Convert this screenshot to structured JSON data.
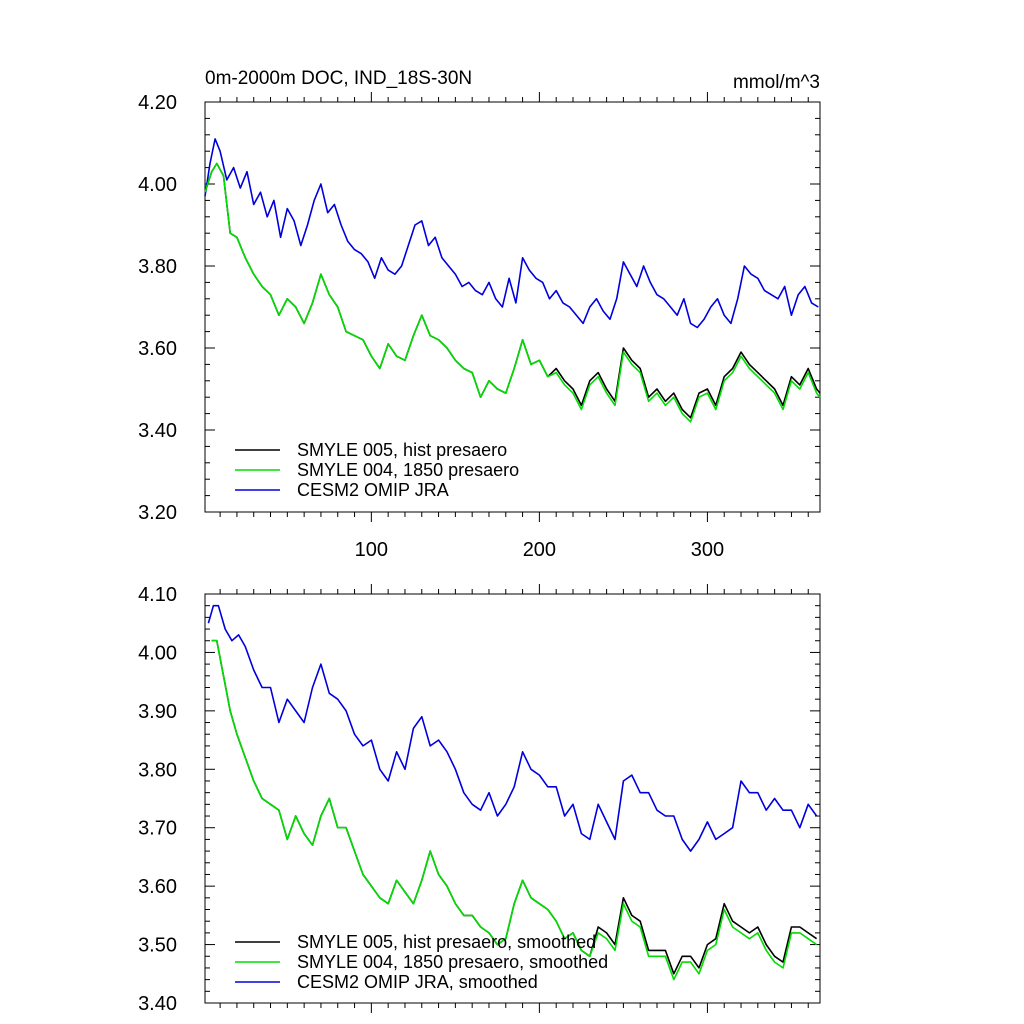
{
  "figure": {
    "title": "0m-2000m DOC, IND_18S-30N",
    "units": "mmol/m^3"
  },
  "chart_data": [
    {
      "type": "line",
      "title": "0m-2000m DOC, IND_18S-30N",
      "units_label": "mmol/m^3",
      "xlabel": "",
      "ylabel": "",
      "xlim": [
        1,
        367
      ],
      "ylim": [
        3.2,
        4.2
      ],
      "xticks": [
        100,
        200,
        300
      ],
      "xtick_labels": [
        "100",
        "200",
        "300"
      ],
      "yticks": [
        3.2,
        3.4,
        3.6,
        3.8,
        4.0,
        4.2
      ],
      "ytick_labels": [
        "3.20",
        "3.40",
        "3.60",
        "3.80",
        "4.00",
        "4.20"
      ],
      "grid": false,
      "legend_position": "bottom-left",
      "series": [
        {
          "name": "SMYLE 005, hist presaero",
          "color": "#000000",
          "x": [
            1,
            5,
            8,
            12,
            16,
            20,
            25,
            30,
            35,
            40,
            45,
            50,
            55,
            60,
            65,
            70,
            75,
            80,
            85,
            90,
            95,
            100,
            105,
            110,
            115,
            120,
            125,
            130,
            135,
            140,
            145,
            150,
            155,
            160,
            165,
            170,
            175,
            180,
            185,
            190,
            195,
            200,
            205,
            210,
            215,
            220,
            225,
            230,
            235,
            240,
            245,
            250,
            255,
            260,
            265,
            270,
            275,
            280,
            285,
            290,
            295,
            300,
            305,
            310,
            315,
            320,
            325,
            330,
            335,
            340,
            345,
            350,
            355,
            360,
            365,
            367
          ],
          "values": [
            3.98,
            4.03,
            4.05,
            4.02,
            3.88,
            3.87,
            3.82,
            3.78,
            3.75,
            3.73,
            3.68,
            3.72,
            3.7,
            3.66,
            3.71,
            3.78,
            3.73,
            3.7,
            3.64,
            3.63,
            3.62,
            3.58,
            3.55,
            3.61,
            3.58,
            3.57,
            3.63,
            3.68,
            3.63,
            3.62,
            3.6,
            3.57,
            3.55,
            3.54,
            3.48,
            3.52,
            3.5,
            3.49,
            3.55,
            3.62,
            3.56,
            3.57,
            3.53,
            3.55,
            3.52,
            3.5,
            3.46,
            3.52,
            3.54,
            3.5,
            3.47,
            3.6,
            3.57,
            3.55,
            3.48,
            3.5,
            3.47,
            3.49,
            3.45,
            3.43,
            3.49,
            3.5,
            3.46,
            3.53,
            3.55,
            3.59,
            3.56,
            3.54,
            3.52,
            3.5,
            3.46,
            3.53,
            3.51,
            3.55,
            3.5,
            3.49
          ]
        },
        {
          "name": "SMYLE 004, 1850 presaero",
          "color": "#00dd00",
          "x": [
            1,
            5,
            8,
            12,
            16,
            20,
            25,
            30,
            35,
            40,
            45,
            50,
            55,
            60,
            65,
            70,
            75,
            80,
            85,
            90,
            95,
            100,
            105,
            110,
            115,
            120,
            125,
            130,
            135,
            140,
            145,
            150,
            155,
            160,
            165,
            170,
            175,
            180,
            185,
            190,
            195,
            200,
            205,
            210,
            215,
            220,
            225,
            230,
            235,
            240,
            245,
            250,
            255,
            260,
            265,
            270,
            275,
            280,
            285,
            290,
            295,
            300,
            305,
            310,
            315,
            320,
            325,
            330,
            335,
            340,
            345,
            350,
            355,
            360,
            365,
            367
          ],
          "values": [
            3.98,
            4.03,
            4.05,
            4.02,
            3.88,
            3.87,
            3.82,
            3.78,
            3.75,
            3.73,
            3.68,
            3.72,
            3.7,
            3.66,
            3.71,
            3.78,
            3.73,
            3.7,
            3.64,
            3.63,
            3.62,
            3.58,
            3.55,
            3.61,
            3.58,
            3.57,
            3.63,
            3.68,
            3.63,
            3.62,
            3.6,
            3.57,
            3.55,
            3.54,
            3.48,
            3.52,
            3.5,
            3.49,
            3.55,
            3.62,
            3.56,
            3.57,
            3.53,
            3.54,
            3.51,
            3.49,
            3.45,
            3.51,
            3.53,
            3.49,
            3.46,
            3.59,
            3.56,
            3.54,
            3.47,
            3.49,
            3.46,
            3.48,
            3.44,
            3.42,
            3.48,
            3.49,
            3.45,
            3.52,
            3.54,
            3.58,
            3.55,
            3.53,
            3.51,
            3.49,
            3.45,
            3.52,
            3.5,
            3.54,
            3.49,
            3.48
          ]
        },
        {
          "name": "CESM2 OMIP JRA",
          "color": "#0000dd",
          "x": [
            1,
            4,
            7,
            10,
            14,
            18,
            22,
            26,
            30,
            34,
            38,
            42,
            46,
            50,
            54,
            58,
            62,
            66,
            70,
            74,
            78,
            82,
            86,
            90,
            94,
            98,
            102,
            106,
            110,
            114,
            118,
            122,
            126,
            130,
            134,
            138,
            142,
            146,
            150,
            154,
            158,
            162,
            166,
            170,
            174,
            178,
            182,
            186,
            190,
            194,
            198,
            202,
            206,
            210,
            214,
            218,
            222,
            226,
            230,
            234,
            238,
            242,
            246,
            250,
            254,
            258,
            262,
            266,
            270,
            274,
            278,
            282,
            286,
            290,
            294,
            298,
            302,
            306,
            310,
            314,
            318,
            322,
            326,
            330,
            334,
            338,
            342,
            346,
            350,
            354,
            358,
            362,
            366
          ],
          "values": [
            3.97,
            4.05,
            4.11,
            4.08,
            4.01,
            4.04,
            3.99,
            4.03,
            3.95,
            3.98,
            3.92,
            3.96,
            3.87,
            3.94,
            3.91,
            3.85,
            3.9,
            3.96,
            4.0,
            3.93,
            3.95,
            3.9,
            3.86,
            3.84,
            3.83,
            3.81,
            3.77,
            3.82,
            3.79,
            3.78,
            3.8,
            3.85,
            3.9,
            3.91,
            3.85,
            3.87,
            3.82,
            3.8,
            3.78,
            3.75,
            3.76,
            3.74,
            3.73,
            3.76,
            3.72,
            3.7,
            3.77,
            3.71,
            3.82,
            3.79,
            3.77,
            3.76,
            3.72,
            3.74,
            3.71,
            3.7,
            3.68,
            3.66,
            3.7,
            3.72,
            3.69,
            3.67,
            3.72,
            3.81,
            3.78,
            3.75,
            3.8,
            3.76,
            3.73,
            3.72,
            3.7,
            3.68,
            3.72,
            3.66,
            3.65,
            3.67,
            3.7,
            3.72,
            3.68,
            3.66,
            3.72,
            3.8,
            3.78,
            3.77,
            3.74,
            3.73,
            3.72,
            3.75,
            3.68,
            3.73,
            3.75,
            3.71,
            3.7
          ]
        }
      ]
    },
    {
      "type": "line",
      "title": "",
      "xlabel": "",
      "ylabel": "",
      "xlim": [
        1,
        367
      ],
      "ylim": [
        3.4,
        4.1
      ],
      "xticks": [
        100,
        200,
        300
      ],
      "xtick_labels": [
        "",
        "",
        ""
      ],
      "yticks": [
        3.4,
        3.5,
        3.6,
        3.7,
        3.8,
        3.9,
        4.0,
        4.1
      ],
      "ytick_labels": [
        "3.40",
        "3.50",
        "3.60",
        "3.70",
        "3.80",
        "3.90",
        "4.00",
        "4.10"
      ],
      "grid": false,
      "legend_position": "bottom-left",
      "series": [
        {
          "name": "SMYLE 005, hist presaero, smoothed",
          "color": "#000000",
          "x": [
            5,
            8,
            12,
            16,
            20,
            25,
            30,
            35,
            40,
            45,
            50,
            55,
            60,
            65,
            70,
            75,
            80,
            85,
            90,
            95,
            100,
            105,
            110,
            115,
            120,
            125,
            130,
            135,
            140,
            145,
            150,
            155,
            160,
            165,
            170,
            175,
            180,
            185,
            190,
            195,
            200,
            205,
            210,
            215,
            220,
            225,
            230,
            235,
            240,
            245,
            250,
            255,
            260,
            265,
            270,
            275,
            280,
            285,
            290,
            295,
            300,
            305,
            310,
            315,
            320,
            325,
            330,
            335,
            340,
            345,
            350,
            355,
            360,
            365
          ],
          "values": [
            4.02,
            4.02,
            3.96,
            3.9,
            3.86,
            3.82,
            3.78,
            3.75,
            3.74,
            3.73,
            3.68,
            3.72,
            3.69,
            3.67,
            3.72,
            3.75,
            3.7,
            3.7,
            3.66,
            3.62,
            3.6,
            3.58,
            3.57,
            3.61,
            3.59,
            3.57,
            3.61,
            3.66,
            3.62,
            3.6,
            3.57,
            3.55,
            3.55,
            3.53,
            3.52,
            3.5,
            3.51,
            3.57,
            3.61,
            3.58,
            3.57,
            3.56,
            3.54,
            3.51,
            3.52,
            3.49,
            3.48,
            3.53,
            3.52,
            3.5,
            3.58,
            3.55,
            3.54,
            3.49,
            3.49,
            3.49,
            3.45,
            3.48,
            3.48,
            3.46,
            3.5,
            3.51,
            3.57,
            3.54,
            3.53,
            3.52,
            3.53,
            3.5,
            3.48,
            3.47,
            3.53,
            3.53,
            3.52,
            3.51
          ]
        },
        {
          "name": "SMYLE 004, 1850 presaero, smoothed",
          "color": "#00dd00",
          "x": [
            5,
            8,
            12,
            16,
            20,
            25,
            30,
            35,
            40,
            45,
            50,
            55,
            60,
            65,
            70,
            75,
            80,
            85,
            90,
            95,
            100,
            105,
            110,
            115,
            120,
            125,
            130,
            135,
            140,
            145,
            150,
            155,
            160,
            165,
            170,
            175,
            180,
            185,
            190,
            195,
            200,
            205,
            210,
            215,
            220,
            225,
            230,
            235,
            240,
            245,
            250,
            255,
            260,
            265,
            270,
            275,
            280,
            285,
            290,
            295,
            300,
            305,
            310,
            315,
            320,
            325,
            330,
            335,
            340,
            345,
            350,
            355,
            360,
            365
          ],
          "values": [
            4.02,
            4.02,
            3.96,
            3.9,
            3.86,
            3.82,
            3.78,
            3.75,
            3.74,
            3.73,
            3.68,
            3.72,
            3.69,
            3.67,
            3.72,
            3.75,
            3.7,
            3.7,
            3.66,
            3.62,
            3.6,
            3.58,
            3.57,
            3.61,
            3.59,
            3.57,
            3.61,
            3.66,
            3.62,
            3.6,
            3.57,
            3.55,
            3.55,
            3.53,
            3.52,
            3.5,
            3.51,
            3.57,
            3.61,
            3.58,
            3.57,
            3.56,
            3.54,
            3.51,
            3.52,
            3.49,
            3.48,
            3.52,
            3.51,
            3.49,
            3.57,
            3.54,
            3.53,
            3.48,
            3.48,
            3.48,
            3.44,
            3.47,
            3.47,
            3.45,
            3.49,
            3.5,
            3.56,
            3.53,
            3.52,
            3.51,
            3.52,
            3.49,
            3.47,
            3.46,
            3.52,
            3.52,
            3.51,
            3.5
          ]
        },
        {
          "name": "CESM2 OMIP JRA, smoothed",
          "color": "#0000dd",
          "x": [
            3,
            6,
            9,
            13,
            17,
            21,
            25,
            30,
            35,
            40,
            45,
            50,
            55,
            60,
            65,
            70,
            75,
            80,
            85,
            90,
            95,
            100,
            105,
            110,
            115,
            120,
            125,
            130,
            135,
            140,
            145,
            150,
            155,
            160,
            165,
            170,
            175,
            180,
            185,
            190,
            195,
            200,
            205,
            210,
            215,
            220,
            225,
            230,
            235,
            240,
            245,
            250,
            255,
            260,
            265,
            270,
            275,
            280,
            285,
            290,
            295,
            300,
            305,
            310,
            315,
            320,
            325,
            330,
            335,
            340,
            345,
            350,
            355,
            360,
            365
          ],
          "values": [
            4.05,
            4.08,
            4.08,
            4.04,
            4.02,
            4.03,
            4.01,
            3.97,
            3.94,
            3.94,
            3.88,
            3.92,
            3.9,
            3.88,
            3.94,
            3.98,
            3.93,
            3.92,
            3.9,
            3.86,
            3.84,
            3.85,
            3.8,
            3.78,
            3.83,
            3.8,
            3.87,
            3.89,
            3.84,
            3.85,
            3.83,
            3.8,
            3.76,
            3.74,
            3.73,
            3.76,
            3.72,
            3.74,
            3.77,
            3.83,
            3.8,
            3.79,
            3.77,
            3.77,
            3.72,
            3.74,
            3.69,
            3.68,
            3.74,
            3.71,
            3.68,
            3.78,
            3.79,
            3.76,
            3.76,
            3.73,
            3.72,
            3.72,
            3.68,
            3.66,
            3.68,
            3.71,
            3.68,
            3.69,
            3.7,
            3.78,
            3.76,
            3.76,
            3.73,
            3.75,
            3.73,
            3.73,
            3.7,
            3.74,
            3.72
          ]
        }
      ]
    }
  ]
}
